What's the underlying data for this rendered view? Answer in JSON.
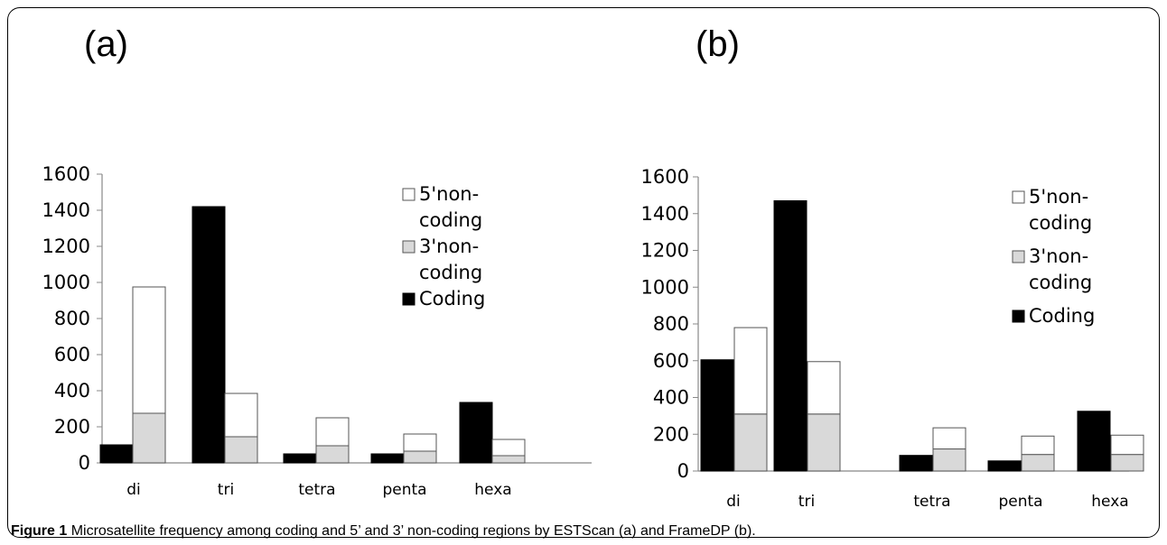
{
  "caption": {
    "label": "Figure 1",
    "text": "Microsatellite frequency among coding and 5’ and 3’ non-coding regions by ESTScan (a) and FrameDP (b)."
  },
  "legend_labels": [
    "5'non-\ncoding",
    "3'non-\ncoding",
    "Coding"
  ],
  "chart_data": [
    {
      "type": "bar",
      "panel_label": "(a)",
      "categories": [
        "di",
        "tri",
        "tetra",
        "penta",
        "hexa"
      ],
      "ylim": [
        0,
        1600
      ],
      "yticks": [
        0,
        200,
        400,
        600,
        800,
        1000,
        1200,
        1400,
        1600
      ],
      "grid": false,
      "legend_position": "top-right",
      "series": [
        {
          "name": "Coding",
          "color": "#000000",
          "values": [
            100,
            1420,
            50,
            50,
            335
          ]
        },
        {
          "name": "3'non-coding",
          "color": "#d9d9d9",
          "values": [
            275,
            145,
            95,
            65,
            40
          ],
          "stack": "non-coding"
        },
        {
          "name": "5'non-coding",
          "color": "#ffffff",
          "values": [
            700,
            240,
            155,
            95,
            90
          ],
          "stack": "non-coding"
        }
      ]
    },
    {
      "type": "bar",
      "panel_label": "(b)",
      "categories": [
        "di",
        "tri",
        "tetra",
        "penta",
        "hexa"
      ],
      "ylim": [
        0,
        1600
      ],
      "yticks": [
        0,
        200,
        400,
        600,
        800,
        1000,
        1200,
        1400,
        1600
      ],
      "grid": false,
      "legend_position": "top-right",
      "series": [
        {
          "name": "Coding",
          "color": "#000000",
          "values": [
            605,
            1470,
            85,
            55,
            325
          ]
        },
        {
          "name": "3'non-coding",
          "color": "#d9d9d9",
          "values": [
            310,
            310,
            120,
            90,
            90
          ],
          "stack": "non-coding"
        },
        {
          "name": "5'non-coding",
          "color": "#ffffff",
          "values": [
            470,
            285,
            115,
            100,
            105
          ],
          "stack": "non-coding"
        }
      ]
    }
  ]
}
